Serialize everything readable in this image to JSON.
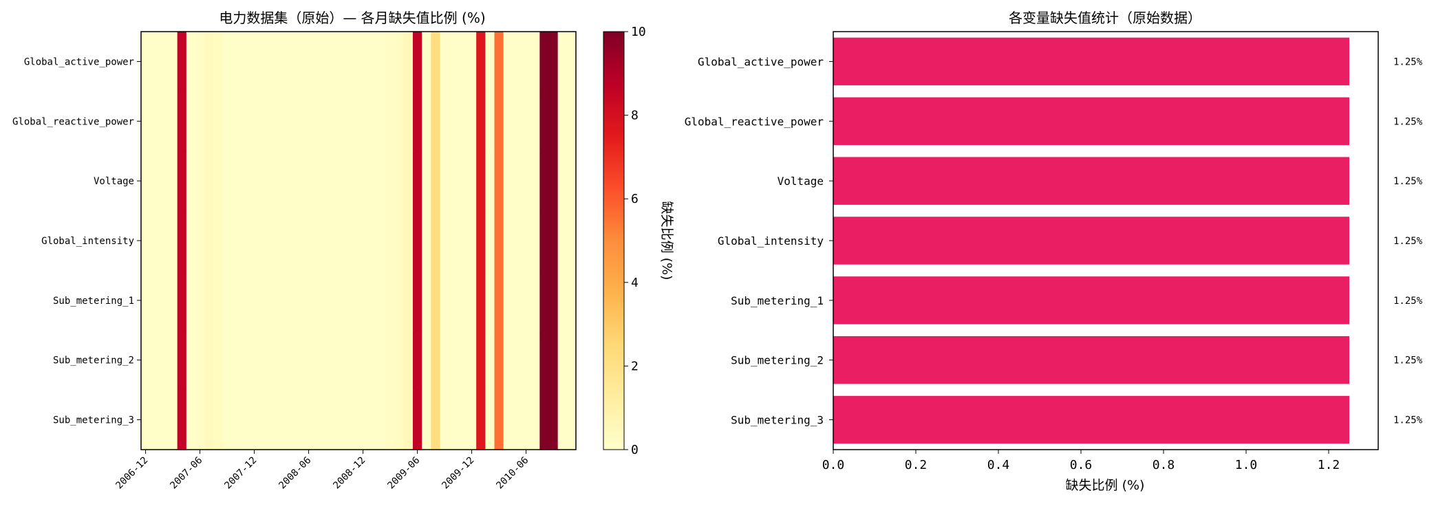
{
  "chart_data": [
    {
      "type": "heatmap",
      "title": "电力数据集（原始）— 各月缺失值比例 (%)",
      "xlabel": "",
      "ylabel": "",
      "rows": [
        "Global_active_power",
        "Global_reactive_power",
        "Voltage",
        "Global_intensity",
        "Sub_metering_1",
        "Sub_metering_2",
        "Sub_metering_3"
      ],
      "months": [
        "2006-12",
        "2007-01",
        "2007-02",
        "2007-03",
        "2007-04",
        "2007-05",
        "2007-06",
        "2007-07",
        "2007-08",
        "2007-09",
        "2007-10",
        "2007-11",
        "2007-12",
        "2008-01",
        "2008-02",
        "2008-03",
        "2008-04",
        "2008-05",
        "2008-06",
        "2008-07",
        "2008-08",
        "2008-09",
        "2008-10",
        "2008-11",
        "2008-12",
        "2009-01",
        "2009-02",
        "2009-03",
        "2009-04",
        "2009-05",
        "2009-06",
        "2009-07",
        "2009-08",
        "2009-09",
        "2009-10",
        "2009-11",
        "2009-12",
        "2010-01",
        "2010-02",
        "2010-03",
        "2010-04",
        "2010-05",
        "2010-06",
        "2010-07",
        "2010-08",
        "2010-09",
        "2010-10",
        "2010-11"
      ],
      "x_tick_labels": [
        "2006-12",
        "2007-06",
        "2007-12",
        "2008-06",
        "2008-12",
        "2009-06",
        "2009-12",
        "2010-06"
      ],
      "values": [
        0.1,
        0.1,
        0.1,
        0.1,
        8.6,
        0.1,
        0.2,
        0.4,
        0.3,
        0.1,
        0.1,
        0.1,
        0.1,
        0.1,
        0.1,
        0.1,
        0.1,
        0.1,
        0.1,
        0.1,
        0.1,
        0.1,
        0.1,
        0.1,
        0.1,
        0.1,
        0.1,
        0.2,
        0.3,
        0.5,
        8.6,
        0.1,
        2.2,
        0.1,
        0.1,
        0.1,
        0.1,
        7.7,
        0.2,
        5.6,
        0.1,
        0.1,
        0.1,
        0.1,
        10.0,
        10.0,
        0.1,
        0.1
      ],
      "note_rows_identical": true,
      "colorbar": {
        "label": "缺失比例 (%)",
        "range": [
          0,
          10
        ],
        "ticks": [
          "0",
          "2",
          "4",
          "6",
          "8",
          "10"
        ],
        "colormap": "YlOrRd"
      }
    },
    {
      "type": "bar",
      "orientation": "horizontal",
      "title": "各变量缺失值统计（原始数据）",
      "xlabel": "缺失比例 (%)",
      "ylabel": "",
      "categories": [
        "Global_active_power",
        "Global_reactive_power",
        "Voltage",
        "Global_intensity",
        "Sub_metering_1",
        "Sub_metering_2",
        "Sub_metering_3"
      ],
      "values": [
        1.25,
        1.25,
        1.25,
        1.25,
        1.25,
        1.25,
        1.25
      ],
      "value_labels": [
        "1.25%",
        "1.25%",
        "1.25%",
        "1.25%",
        "1.25%",
        "1.25%",
        "1.25%"
      ],
      "xlim": [
        0,
        1.32
      ],
      "x_ticks": [
        "0.0",
        "0.2",
        "0.4",
        "0.6",
        "0.8",
        "1.0",
        "1.2"
      ],
      "bar_color": "#e91e63"
    }
  ]
}
